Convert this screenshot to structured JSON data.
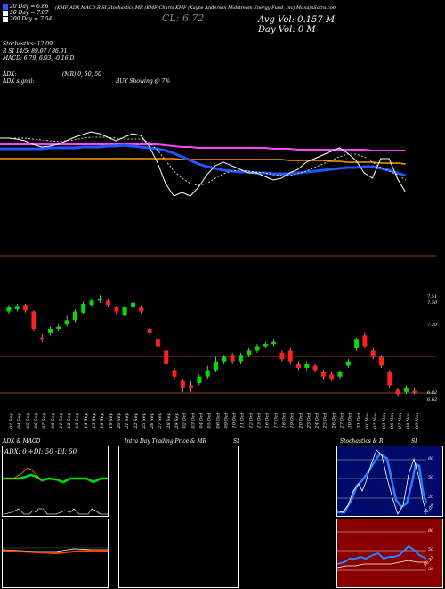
{
  "header": {
    "legend": [
      "20 Day = 6.86",
      "50 Day = 7.07",
      "200 Day = 7.54"
    ],
    "legend_colors": [
      "#3355ff",
      "#ffffff",
      "#ffffff"
    ],
    "ticker_line": "(KMF)ADX,MACD,R  SI,Stochastics,MR  (KMF)Charts KMF  (Kayne Anderson Midstream Energy Fund, Inc) MunafaSutra.com",
    "cl_label": "CL: 6.72",
    "avg_vol": "Avg Vol: 0.157 M",
    "day_vol": "Day Vol: 0  M",
    "stochastics": "Stochastics: 12.09",
    "rsi": "R                    SI 14/5: 89.07 / 86.91",
    "macd": "MACD: 6.79, 6.93,  -0.16  D",
    "adx": "ADX:",
    "adx_signal": "ADX  signal:",
    "mr": "(MR) 0,  50,  50",
    "buy_showing": "BUY Showing @ 7%"
  },
  "price_axis": [
    "7.51",
    "7.50",
    "7.20",
    "6.82",
    "6.62"
  ],
  "dates": [
    "01 Sep",
    "04 Sep",
    "05 Sep",
    "06 Sep",
    "07 Sep",
    "08 Sep",
    "11 Sep",
    "12 Sep",
    "13 Sep",
    "14 Sep",
    "15 Sep",
    "18 Sep",
    "19 Sep",
    "20 Sep",
    "21 Sep",
    "22 Sep",
    "25 Sep",
    "26 Sep",
    "27 Sep",
    "28 Sep",
    "29 Sep",
    "02 Oct",
    "03 Oct",
    "04 Oct",
    "05 Oct",
    "06 Oct",
    "09 Oct",
    "10 Oct",
    "11 Oct",
    "12 Oct",
    "13 Oct",
    "16 Oct",
    "17 Oct",
    "18 Oct",
    "19 Oct",
    "20 Oct",
    "23 Oct",
    "24 Oct",
    "25 Oct",
    "26 Oct",
    "27 Oct",
    "30 Oct",
    "31 Oct",
    "01 Nov",
    "02 Nov",
    "03 Nov",
    "06 Nov",
    "07 Nov",
    "08 Nov",
    "09 Nov"
  ],
  "panels": {
    "adx_title": "ADX  & MACD",
    "adx_values": "ADX: 0  +DI: 50  -DI: 50",
    "mr_title": "Intra  Day Trading Price  & MR",
    "mr_si": "SI",
    "stoch_title": "Stochastics & R",
    "stoch_si": "SI",
    "stoch_axis": [
      "80",
      "50",
      "20",
      "12.09"
    ],
    "rsi_axis": [
      "80",
      "50",
      "20",
      "86.91"
    ]
  },
  "candles": [
    {
      "o": 7.46,
      "c": 7.5,
      "h": 7.52,
      "l": 7.44,
      "up": true
    },
    {
      "o": 7.48,
      "c": 7.51,
      "h": 7.53,
      "l": 7.46,
      "up": true
    },
    {
      "o": 7.52,
      "c": 7.47,
      "h": 7.53,
      "l": 7.45,
      "up": false
    },
    {
      "o": 7.46,
      "c": 7.3,
      "h": 7.47,
      "l": 7.28,
      "up": false
    },
    {
      "o": 7.22,
      "c": 7.2,
      "h": 7.25,
      "l": 7.18,
      "up": false
    },
    {
      "o": 7.26,
      "c": 7.3,
      "h": 7.32,
      "l": 7.24,
      "up": true
    },
    {
      "o": 7.3,
      "c": 7.32,
      "h": 7.34,
      "l": 7.28,
      "up": true
    },
    {
      "o": 7.34,
      "c": 7.38,
      "h": 7.42,
      "l": 7.32,
      "up": true
    },
    {
      "o": 7.38,
      "c": 7.46,
      "h": 7.48,
      "l": 7.36,
      "up": true
    },
    {
      "o": 7.45,
      "c": 7.53,
      "h": 7.55,
      "l": 7.44,
      "up": true
    },
    {
      "o": 7.52,
      "c": 7.56,
      "h": 7.58,
      "l": 7.5,
      "up": true
    },
    {
      "o": 7.56,
      "c": 7.58,
      "h": 7.61,
      "l": 7.54,
      "up": true
    },
    {
      "o": 7.56,
      "c": 7.52,
      "h": 7.58,
      "l": 7.5,
      "up": false
    },
    {
      "o": 7.5,
      "c": 7.46,
      "h": 7.51,
      "l": 7.44,
      "up": false
    },
    {
      "o": 7.42,
      "c": 7.5,
      "h": 7.52,
      "l": 7.4,
      "up": true
    },
    {
      "o": 7.5,
      "c": 7.54,
      "h": 7.56,
      "l": 7.49,
      "up": true
    },
    {
      "o": 7.5,
      "c": 7.46,
      "h": 7.52,
      "l": 7.44,
      "up": false
    },
    {
      "o": 7.3,
      "c": 7.26,
      "h": 7.31,
      "l": 7.24,
      "up": false
    },
    {
      "o": 7.2,
      "c": 7.14,
      "h": 7.21,
      "l": 7.1,
      "up": false
    },
    {
      "o": 7.1,
      "c": 6.98,
      "h": 7.11,
      "l": 6.96,
      "up": false
    },
    {
      "o": 6.92,
      "c": 6.86,
      "h": 6.94,
      "l": 6.84,
      "up": false
    },
    {
      "o": 6.82,
      "c": 6.76,
      "h": 6.84,
      "l": 6.72,
      "up": false
    },
    {
      "o": 6.78,
      "c": 6.76,
      "h": 6.82,
      "l": 6.72,
      "up": false
    },
    {
      "o": 6.8,
      "c": 6.86,
      "h": 6.88,
      "l": 6.78,
      "up": true
    },
    {
      "o": 6.86,
      "c": 6.92,
      "h": 6.96,
      "l": 6.84,
      "up": true
    },
    {
      "o": 6.92,
      "c": 7.0,
      "h": 7.04,
      "l": 6.9,
      "up": true
    },
    {
      "o": 7.0,
      "c": 7.04,
      "h": 7.06,
      "l": 6.98,
      "up": true
    },
    {
      "o": 7.06,
      "c": 7.0,
      "h": 7.08,
      "l": 6.98,
      "up": false
    },
    {
      "o": 7.0,
      "c": 7.06,
      "h": 7.08,
      "l": 6.98,
      "up": true
    },
    {
      "o": 7.06,
      "c": 7.1,
      "h": 7.12,
      "l": 7.04,
      "up": true
    },
    {
      "o": 7.1,
      "c": 7.14,
      "h": 7.16,
      "l": 7.08,
      "up": true
    },
    {
      "o": 7.14,
      "c": 7.16,
      "h": 7.18,
      "l": 7.12,
      "up": true
    },
    {
      "o": 7.16,
      "c": 7.18,
      "h": 7.2,
      "l": 7.14,
      "up": true
    },
    {
      "o": 7.08,
      "c": 7.02,
      "h": 7.1,
      "l": 7.0,
      "up": false
    },
    {
      "o": 7.1,
      "c": 7.0,
      "h": 7.12,
      "l": 6.98,
      "up": false
    },
    {
      "o": 6.98,
      "c": 6.94,
      "h": 7.0,
      "l": 6.92,
      "up": false
    },
    {
      "o": 6.94,
      "c": 6.98,
      "h": 7.0,
      "l": 6.92,
      "up": true
    },
    {
      "o": 6.96,
      "c": 6.92,
      "h": 6.98,
      "l": 6.9,
      "up": false
    },
    {
      "o": 6.9,
      "c": 6.86,
      "h": 6.92,
      "l": 6.84,
      "up": false
    },
    {
      "o": 6.88,
      "c": 6.84,
      "h": 6.9,
      "l": 6.82,
      "up": false
    },
    {
      "o": 6.86,
      "c": 6.9,
      "h": 6.92,
      "l": 6.84,
      "up": true
    },
    {
      "o": 6.96,
      "c": 7.0,
      "h": 7.02,
      "l": 6.94,
      "up": true
    },
    {
      "o": 7.12,
      "c": 7.2,
      "h": 7.22,
      "l": 7.1,
      "up": true
    },
    {
      "o": 7.24,
      "c": 7.14,
      "h": 7.26,
      "l": 7.12,
      "up": false
    },
    {
      "o": 7.1,
      "c": 7.04,
      "h": 7.12,
      "l": 7.02,
      "up": false
    },
    {
      "o": 7.04,
      "c": 6.96,
      "h": 7.06,
      "l": 6.94,
      "up": false
    },
    {
      "o": 6.9,
      "c": 6.78,
      "h": 6.92,
      "l": 6.76,
      "up": false
    },
    {
      "o": 6.74,
      "c": 6.7,
      "h": 6.76,
      "l": 6.68,
      "up": false
    },
    {
      "o": 6.72,
      "c": 6.76,
      "h": 6.78,
      "l": 6.7,
      "up": true
    },
    {
      "o": 6.73,
      "c": 6.72,
      "h": 6.76,
      "l": 6.7,
      "up": false
    }
  ],
  "ma_lines": {
    "pink": [
      0.02,
      0.02,
      0.02,
      0.02,
      0.02,
      0.02,
      0.02,
      0.02,
      0.02,
      0.02,
      0.02,
      0.02,
      0.02,
      0.02,
      0.02,
      0.02,
      0.02,
      0.02,
      0.02,
      0.02,
      0.03,
      0.04,
      0.05,
      0.05,
      0.06,
      0.06,
      0.06,
      0.06,
      0.06,
      0.06,
      0.06,
      0.06,
      0.06,
      0.07,
      0.07,
      0.07,
      0.08,
      0.08,
      0.08,
      0.08,
      0.08,
      0.08,
      0.08,
      0.08,
      0.08,
      0.09,
      0.09,
      0.09,
      0.09,
      0.09
    ],
    "orange": [
      0.18,
      0.18,
      0.18,
      0.18,
      0.18,
      0.18,
      0.18,
      0.18,
      0.18,
      0.18,
      0.18,
      0.18,
      0.18,
      0.18,
      0.18,
      0.18,
      0.18,
      0.18,
      0.18,
      0.18,
      0.18,
      0.18,
      0.19,
      0.19,
      0.19,
      0.19,
      0.19,
      0.19,
      0.19,
      0.19,
      0.19,
      0.19,
      0.19,
      0.19,
      0.19,
      0.2,
      0.2,
      0.2,
      0.2,
      0.2,
      0.21,
      0.21,
      0.22,
      0.22,
      0.22,
      0.22,
      0.23,
      0.23,
      0.23,
      0.24
    ],
    "blue": [
      0.07,
      0.07,
      0.07,
      0.07,
      0.07,
      0.07,
      0.06,
      0.06,
      0.06,
      0.06,
      0.05,
      0.05,
      0.05,
      0.04,
      0.04,
      0.03,
      0.04,
      0.05,
      0.06,
      0.07,
      0.09,
      0.12,
      0.16,
      0.2,
      0.24,
      0.27,
      0.29,
      0.31,
      0.32,
      0.33,
      0.33,
      0.34,
      0.34,
      0.35,
      0.35,
      0.35,
      0.34,
      0.33,
      0.32,
      0.31,
      0.3,
      0.29,
      0.28,
      0.28,
      0.27,
      0.27,
      0.29,
      0.31,
      0.34,
      0.37
    ],
    "white": [
      -0.05,
      -0.05,
      -0.04,
      -0.02,
      0.02,
      0.05,
      0.04,
      0.02,
      -0.02,
      -0.06,
      -0.09,
      -0.12,
      -0.1,
      -0.06,
      -0.02,
      -0.06,
      -0.1,
      -0.08,
      0.04,
      0.22,
      0.46,
      0.6,
      0.56,
      0.6,
      0.5,
      0.36,
      0.26,
      0.22,
      0.26,
      0.3,
      0.34,
      0.34,
      0.38,
      0.42,
      0.4,
      0.34,
      0.3,
      0.22,
      0.18,
      0.14,
      0.1,
      0.06,
      0.12,
      0.2,
      0.34,
      0.4,
      0.18,
      0.18,
      0.4,
      0.56
    ],
    "dotted": [
      -0.05,
      -0.05,
      -0.05,
      -0.05,
      -0.04,
      -0.03,
      -0.02,
      -0.01,
      -0.02,
      -0.03,
      -0.05,
      -0.06,
      -0.06,
      -0.06,
      -0.05,
      -0.04,
      -0.04,
      -0.04,
      0.0,
      0.08,
      0.2,
      0.32,
      0.4,
      0.46,
      0.48,
      0.46,
      0.4,
      0.35,
      0.32,
      0.31,
      0.32,
      0.33,
      0.34,
      0.36,
      0.37,
      0.37,
      0.35,
      0.32,
      0.28,
      0.24,
      0.2,
      0.16,
      0.13,
      0.13,
      0.16,
      0.22,
      0.28,
      0.32,
      0.36,
      0.42
    ]
  }
}
